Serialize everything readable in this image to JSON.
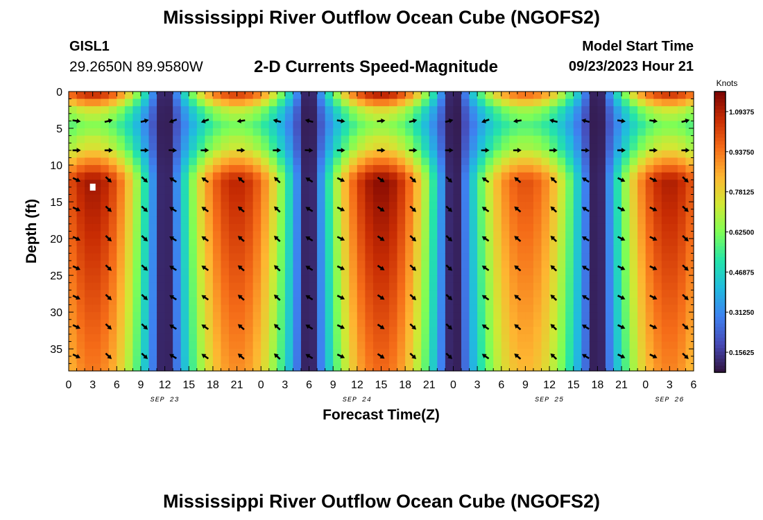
{
  "header": {
    "title": "Mississippi River Outflow Ocean Cube (NGOFS2)",
    "station": "GISL1",
    "coordinates": "29.2650N  89.9580W",
    "subtitle": "2-D Currents Speed-Magnitude",
    "model_start_label": "Model Start Time",
    "model_start_value": "09/23/2023 Hour 21"
  },
  "footer": {
    "title": "Mississippi River Outflow Ocean Cube (NGOFS2)"
  },
  "chart_data": {
    "type": "heatmap",
    "title": "2-D Currents Speed-Magnitude",
    "xlabel": "Forecast Time(Z)",
    "ylabel": "Depth (ft)",
    "x_hours_range": [
      0,
      78
    ],
    "x_tick_hours": [
      0,
      3,
      6,
      9,
      12,
      15,
      18,
      21,
      24,
      27,
      30,
      33,
      36,
      39,
      42,
      45,
      48,
      51,
      54,
      57,
      60,
      63,
      66,
      69,
      72,
      75,
      78
    ],
    "x_tick_labels": [
      "0",
      "3",
      "6",
      "9",
      "12",
      "15",
      "18",
      "21",
      "0",
      "3",
      "6",
      "9",
      "12",
      "15",
      "18",
      "21",
      "0",
      "3",
      "6",
      "9",
      "12",
      "15",
      "18",
      "21",
      "0",
      "3",
      "6"
    ],
    "date_labels": [
      {
        "text": "SEP 23",
        "hour": 12
      },
      {
        "text": "SEP 24",
        "hour": 36
      },
      {
        "text": "SEP 25",
        "hour": 60
      },
      {
        "text": "SEP 26",
        "hour": 75
      }
    ],
    "y_range_ft": [
      0,
      38
    ],
    "y_ticks": [
      0,
      5,
      10,
      15,
      20,
      25,
      30,
      35
    ],
    "y_tick_labels": [
      "0",
      "5",
      "10",
      "15",
      "20",
      "25",
      "30",
      "35"
    ],
    "colorbar": {
      "label": "Knots",
      "range": [
        0.0781,
        1.1719
      ],
      "ticks": [
        0.15625,
        0.3125,
        0.46875,
        0.625,
        0.78125,
        0.9375,
        1.09375
      ],
      "tick_labels": [
        "0.15625",
        "0.31250",
        "0.46875",
        "0.62500",
        "0.78125",
        "0.93750",
        "1.09375"
      ]
    },
    "peaks": [
      {
        "hour": 3,
        "amp": 1.12,
        "dir": "ebb"
      },
      {
        "hour": 21,
        "amp": 1.08,
        "dir": "flood"
      },
      {
        "hour": 39,
        "amp": 1.15,
        "dir": "ebb"
      },
      {
        "hour": 57,
        "amp": 1.0,
        "dir": "flood"
      },
      {
        "hour": 75,
        "amp": 1.1,
        "dir": "ebb"
      }
    ],
    "vector_hours": [
      1,
      5,
      9.5,
      13,
      17,
      21.5,
      26,
      30,
      34,
      39,
      43,
      47.5,
      52,
      56,
      60.5,
      64.5,
      69,
      73,
      77
    ],
    "vector_depths_ft": [
      4,
      8,
      12,
      16,
      20,
      24,
      28,
      32,
      36
    ],
    "marker": {
      "hour": 3,
      "depth_ft": 13
    }
  }
}
